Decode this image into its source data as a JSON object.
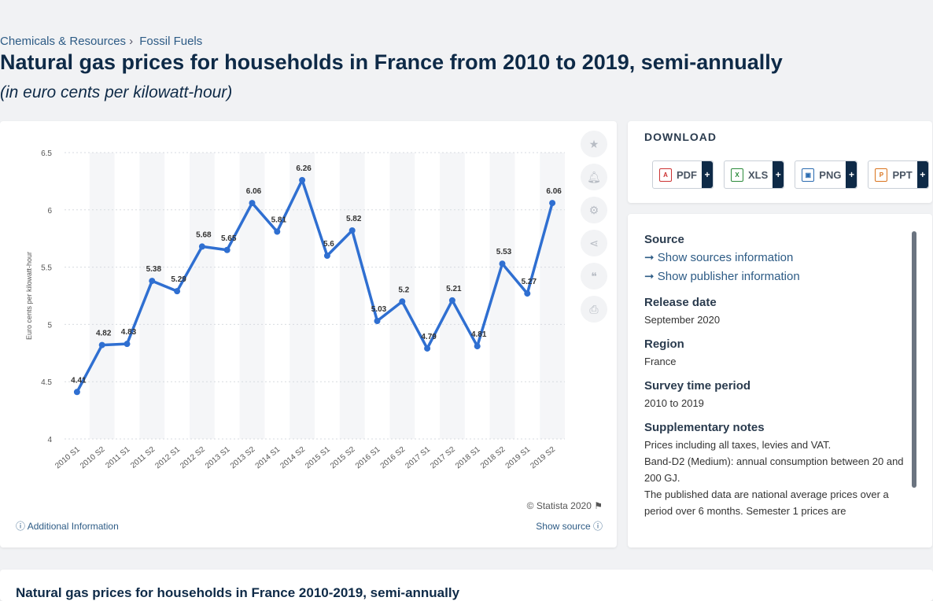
{
  "breadcrumb": {
    "category": "Chemicals & Resources",
    "subcategory": "Fossil Fuels"
  },
  "title": "Natural gas prices for households in France from 2010 to 2019, semi-annually",
  "subtitle": "(in euro cents per kilowatt-hour)",
  "chart_data": {
    "type": "line",
    "x": [
      "2010 S1",
      "2010 S2",
      "2011 S1",
      "2011 S2",
      "2012 S1",
      "2012 S2",
      "2013 S1",
      "2013 S2",
      "2014 S1",
      "2014 S2",
      "2015 S1",
      "2015 S2",
      "2016 S1",
      "2016 S2",
      "2017 S1",
      "2017 S2",
      "2018 S1",
      "2018 S2",
      "2019 S1",
      "2019 S2"
    ],
    "values": [
      4.41,
      4.82,
      4.83,
      5.38,
      5.29,
      5.68,
      5.65,
      6.06,
      5.81,
      6.26,
      5.6,
      5.82,
      5.03,
      5.2,
      4.79,
      5.21,
      4.81,
      5.53,
      5.27,
      6.06
    ],
    "ylabel": "Euro cents per kilowatt-hour",
    "ylim": [
      4,
      6.5
    ],
    "yticks": [
      "4",
      "4.5",
      "5",
      "5.5",
      "6",
      "6.5"
    ],
    "color": "#2f6fd1",
    "grid": true
  },
  "chart_footer": {
    "copyright": "© Statista 2020",
    "additional_info": "Additional Information",
    "show_source": "Show source"
  },
  "tools": [
    "star-icon",
    "bell-icon",
    "gear-icon",
    "share-icon",
    "quote-icon",
    "print-icon"
  ],
  "download": {
    "heading": "DOWNLOAD",
    "buttons": [
      {
        "label": "PDF",
        "plus": "+"
      },
      {
        "label": "XLS",
        "plus": "+"
      },
      {
        "label": "PNG",
        "plus": "+"
      },
      {
        "label": "PPT",
        "plus": "+"
      }
    ]
  },
  "info": {
    "source_heading": "Source",
    "show_sources": "Show sources information",
    "show_publisher": "Show publisher information",
    "release_heading": "Release date",
    "release_value": "September 2020",
    "region_heading": "Region",
    "region_value": "France",
    "survey_heading": "Survey time period",
    "survey_value": "2010 to 2019",
    "notes_heading": "Supplementary notes",
    "notes": [
      "Prices including all taxes, levies and VAT.",
      "Band-D2 (Medium): annual consumption between 20 and 200 GJ.",
      "The published data are national average prices over a period over 6 months. Semester 1 prices are"
    ]
  },
  "bottom_title": "Natural gas prices for households in France 2010-2019, semi-annually"
}
